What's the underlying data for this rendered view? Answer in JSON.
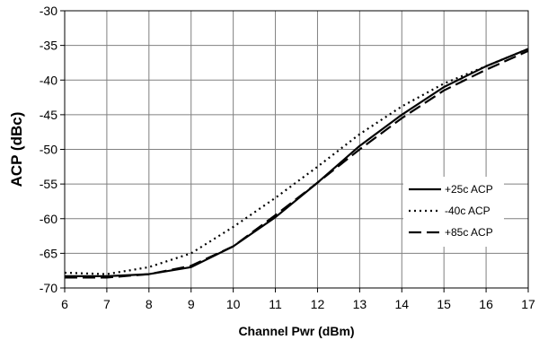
{
  "chart_data": {
    "type": "line",
    "title": "",
    "xlabel": "Channel Pwr (dBm)",
    "ylabel": "ACP (dBc)",
    "xlim": [
      6,
      17
    ],
    "ylim": [
      -70,
      -30
    ],
    "xticks": [
      6,
      7,
      8,
      9,
      10,
      11,
      12,
      13,
      14,
      15,
      16,
      17
    ],
    "yticks": [
      -70,
      -65,
      -60,
      -55,
      -50,
      -45,
      -40,
      -35,
      -30
    ],
    "grid": true,
    "legend_position": "right",
    "series": [
      {
        "name": "+25c ACP",
        "line_style": "solid",
        "color": "#000000",
        "x": [
          6,
          7,
          8,
          9,
          10,
          11,
          12,
          13,
          14,
          15,
          16,
          17
        ],
        "y": [
          -68.3,
          -68.3,
          -68,
          -67,
          -64,
          -59.8,
          -54.8,
          -49.5,
          -45,
          -41,
          -38,
          -35.5
        ]
      },
      {
        "name": "-40c ACP",
        "line_style": "dotted",
        "color": "#000000",
        "x": [
          6,
          7,
          8,
          9,
          10,
          11,
          12,
          13,
          14,
          15,
          16,
          17
        ],
        "y": [
          -67.8,
          -68,
          -67,
          -65,
          -61.2,
          -57,
          -52.5,
          -47.8,
          -43.8,
          -40.5,
          -38,
          -35.5
        ]
      },
      {
        "name": "+85c ACP",
        "line_style": "dashed",
        "color": "#000000",
        "x": [
          6,
          7,
          8,
          9,
          10,
          11,
          12,
          13,
          14,
          15,
          16,
          17
        ],
        "y": [
          -68.5,
          -68.5,
          -68,
          -66.8,
          -64,
          -59.5,
          -54.8,
          -50,
          -45.5,
          -41.5,
          -38.5,
          -35.8
        ]
      }
    ]
  }
}
